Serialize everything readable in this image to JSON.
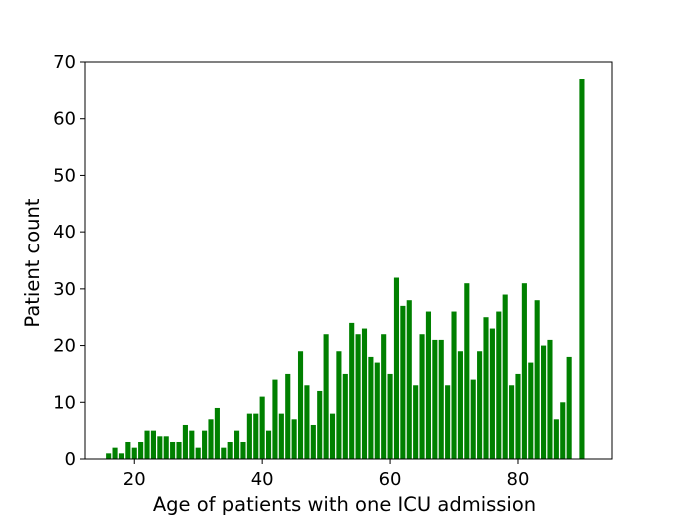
{
  "chart_data": {
    "type": "bar",
    "xlabel": "Age of patients with one ICU admission",
    "ylabel": "Patient count",
    "xlim": [
      12.3,
      94.7
    ],
    "ylim": [
      0,
      70
    ],
    "xticks": [
      20,
      40,
      60,
      80
    ],
    "yticks": [
      0,
      10,
      20,
      30,
      40,
      50,
      60,
      70
    ],
    "bar_color": "#008000",
    "grid": false,
    "x": [
      16,
      17,
      18,
      19,
      20,
      21,
      22,
      23,
      24,
      25,
      26,
      27,
      28,
      29,
      30,
      31,
      32,
      33,
      34,
      35,
      36,
      37,
      38,
      39,
      40,
      41,
      42,
      43,
      44,
      45,
      46,
      47,
      48,
      49,
      50,
      51,
      52,
      53,
      54,
      55,
      56,
      57,
      58,
      59,
      60,
      61,
      62,
      63,
      64,
      65,
      66,
      67,
      68,
      69,
      70,
      71,
      72,
      73,
      74,
      75,
      76,
      77,
      78,
      79,
      80,
      81,
      82,
      83,
      84,
      85,
      86,
      87,
      88,
      90
    ],
    "values": [
      1,
      2,
      1,
      3,
      2,
      3,
      5,
      5,
      4,
      4,
      3,
      3,
      6,
      5,
      2,
      5,
      7,
      9,
      2,
      3,
      5,
      3,
      8,
      8,
      11,
      5,
      14,
      8,
      15,
      7,
      19,
      13,
      6,
      12,
      22,
      8,
      19,
      15,
      24,
      22,
      23,
      18,
      17,
      22,
      15,
      32,
      27,
      28,
      13,
      22,
      26,
      21,
      21,
      13,
      26,
      19,
      31,
      14,
      19,
      25,
      23,
      26,
      29,
      13,
      15,
      31,
      17,
      28,
      20,
      21,
      7,
      10,
      18,
      67
    ]
  }
}
